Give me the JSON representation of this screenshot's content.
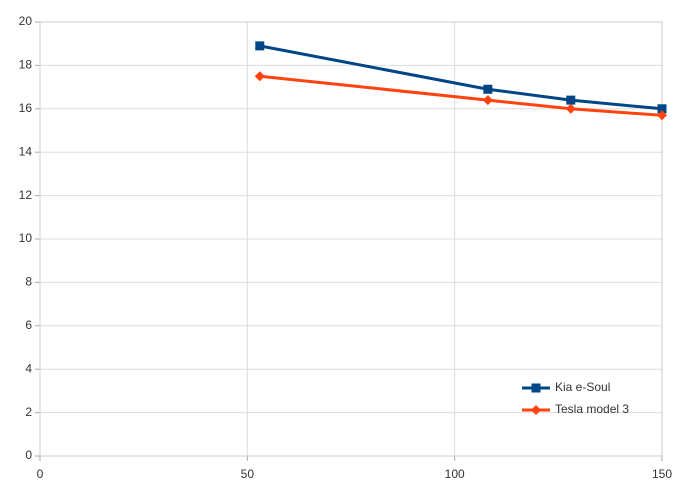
{
  "chart_data": {
    "type": "line",
    "x": [
      53,
      108,
      128,
      150
    ],
    "series": [
      {
        "name": "Kia e-Soul",
        "color": "#004586",
        "marker": "square",
        "values": [
          18.9,
          16.9,
          16.4,
          16.0
        ]
      },
      {
        "name": "Tesla model 3",
        "color": "#ff420e",
        "marker": "diamond",
        "values": [
          17.5,
          16.4,
          16.0,
          15.7
        ]
      }
    ],
    "xlim": [
      0,
      150
    ],
    "xticks": [
      0,
      50,
      100,
      150
    ],
    "ylim": [
      0,
      20
    ],
    "yticks": [
      0,
      2,
      4,
      6,
      8,
      10,
      12,
      14,
      16,
      18,
      20
    ],
    "grid": true,
    "legend": "lower right"
  }
}
